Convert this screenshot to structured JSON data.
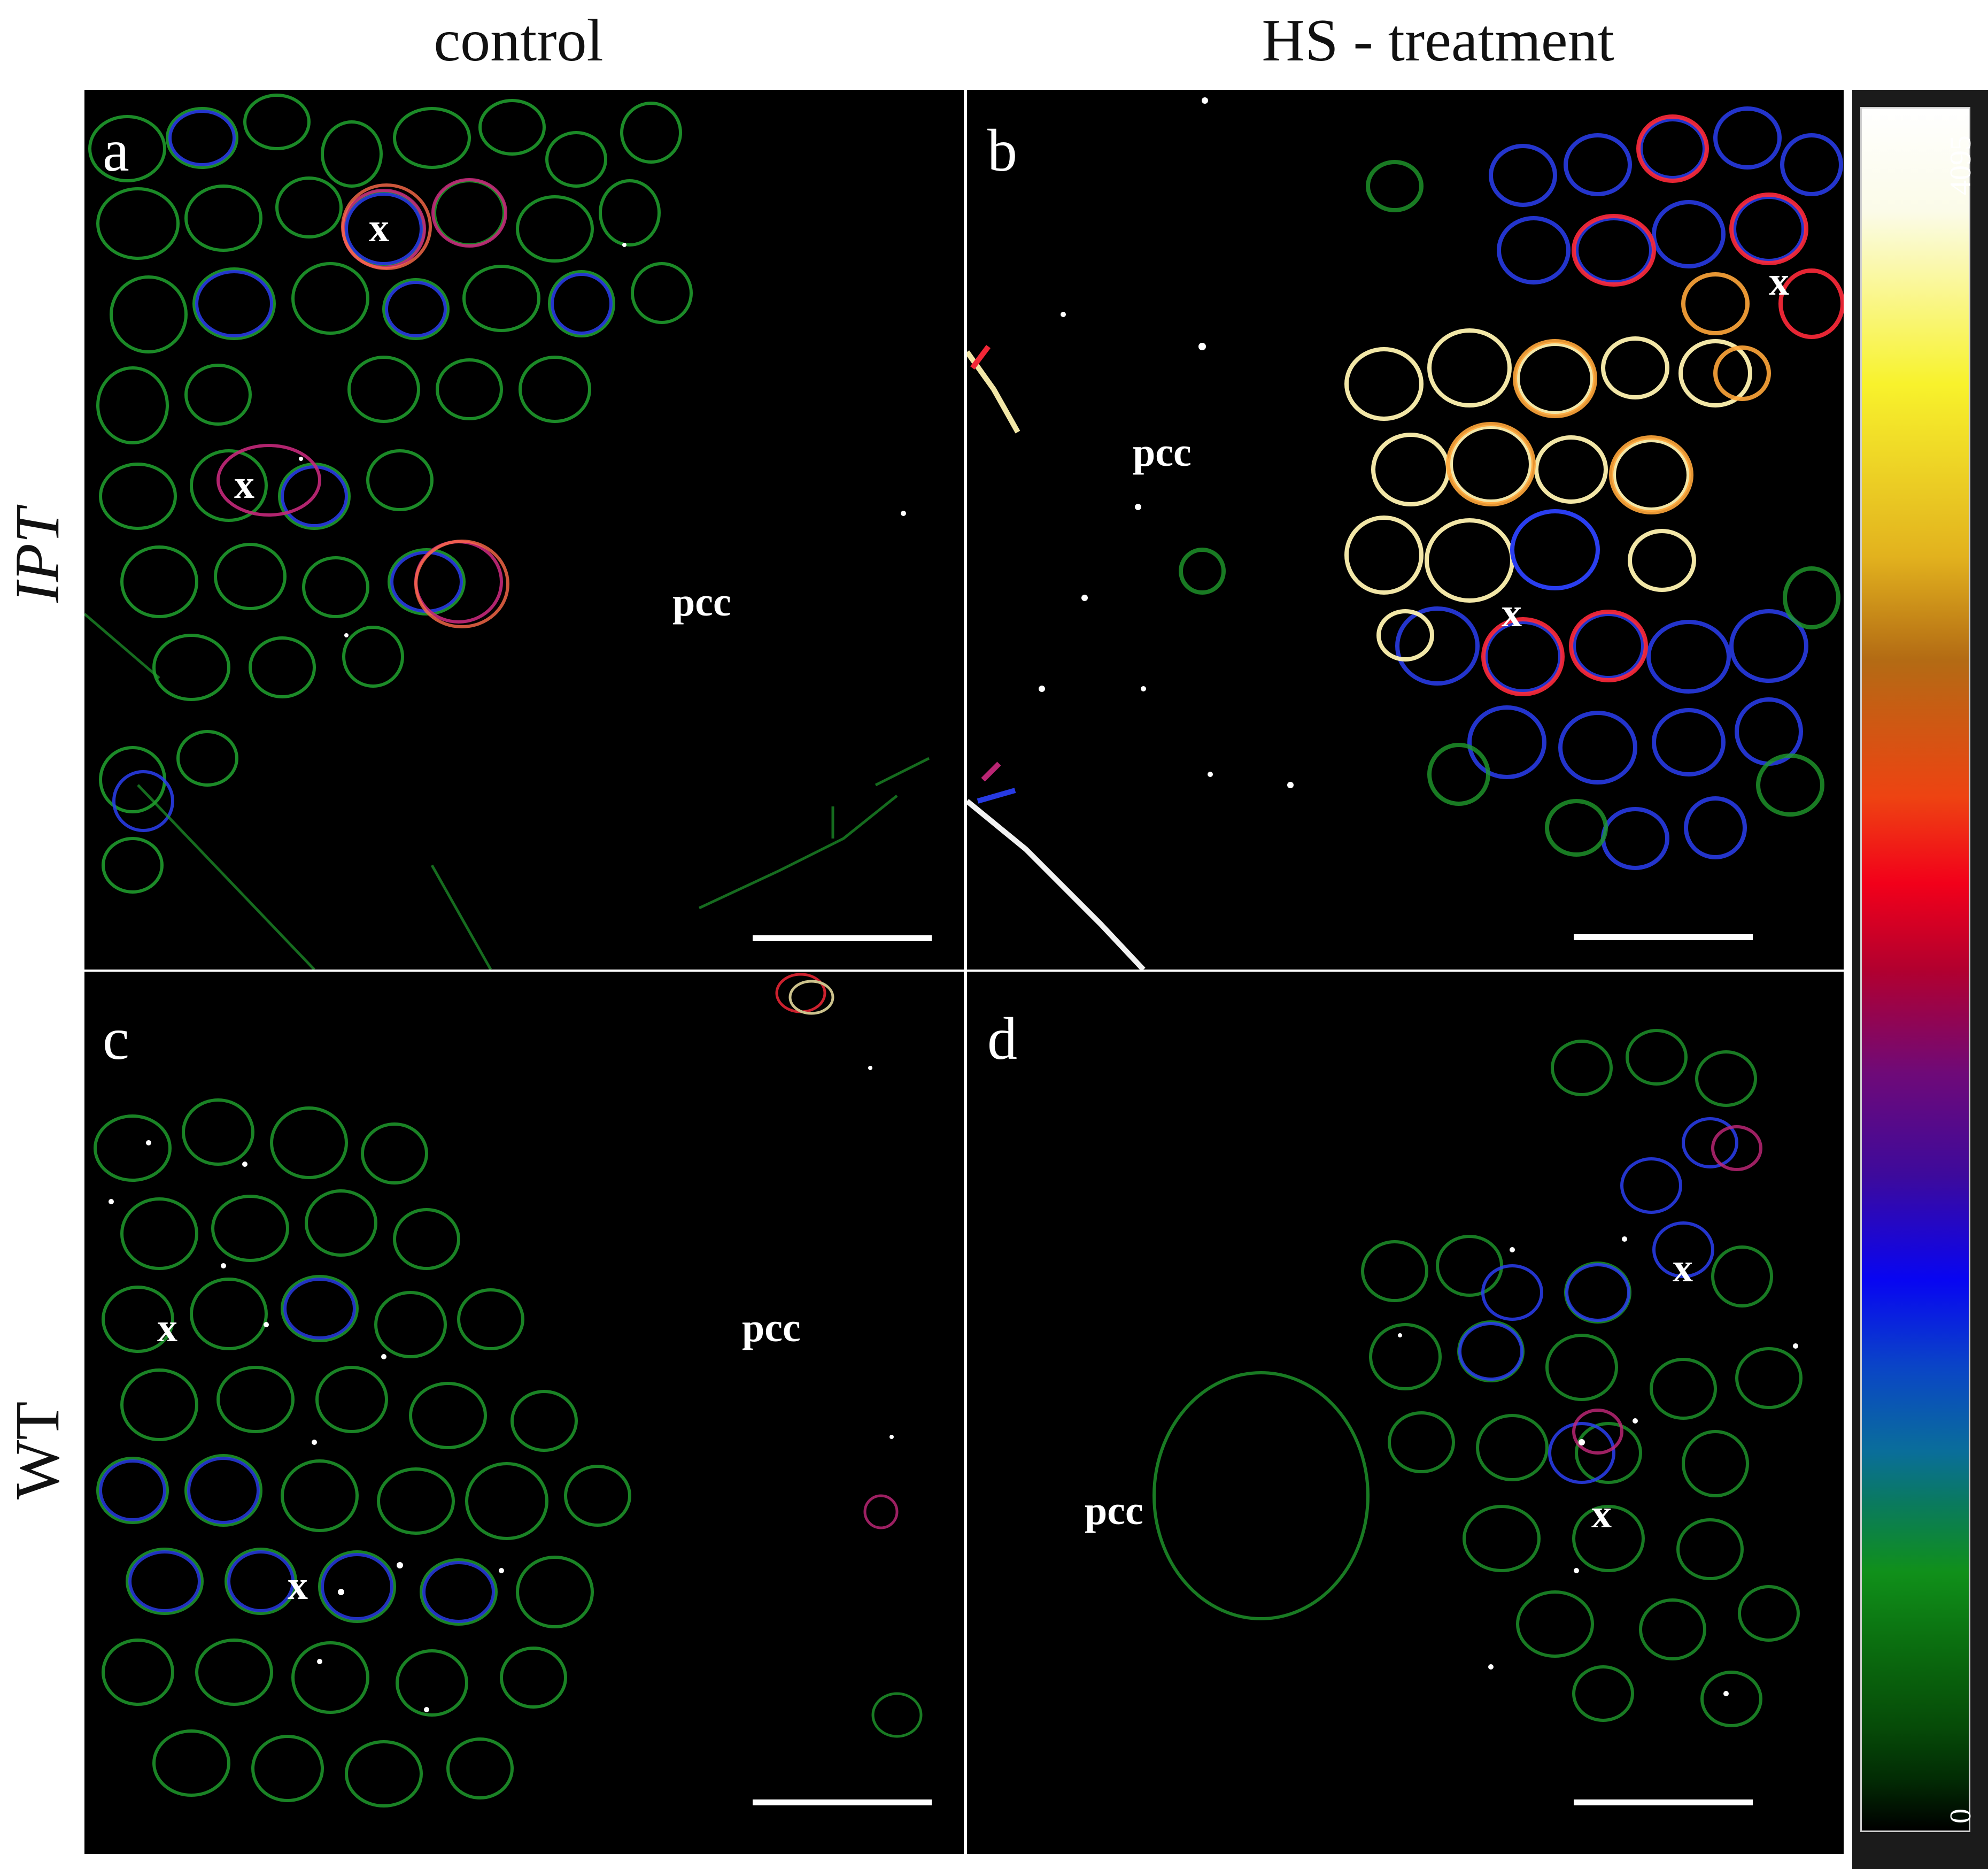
{
  "columns": [
    "control",
    "HS - treatment"
  ],
  "rows": [
    "IPT",
    "WT"
  ],
  "panels": [
    {
      "letter": "a",
      "markers": [
        "x",
        "x",
        "pcc"
      ]
    },
    {
      "letter": "b",
      "markers": [
        "x",
        "pcc",
        "x"
      ]
    },
    {
      "letter": "c",
      "markers": [
        "x",
        "x",
        "pcc"
      ]
    },
    {
      "letter": "d",
      "markers": [
        "x",
        "x",
        "pcc"
      ]
    }
  ],
  "colorbar": {
    "max_label": "4095",
    "min_label": "0"
  },
  "colors": {
    "cell_wall_low": "#1f9a2c",
    "cell_wall_mid": "#2a3ef0",
    "cell_wall_high": "#ff2a3a",
    "cell_wall_max": "#fff3b0"
  }
}
